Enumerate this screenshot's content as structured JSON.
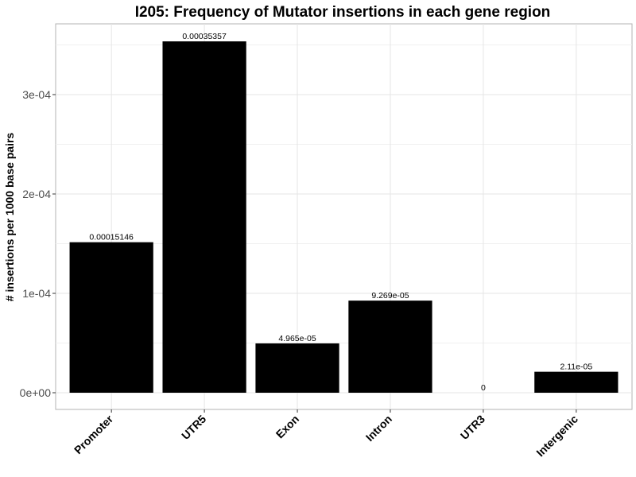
{
  "chart_data": {
    "type": "bar",
    "title": "I205: Frequency of Mutator insertions in each gene region",
    "xlabel": "",
    "ylabel": "# insertions per 1000 base pairs",
    "categories": [
      "Promoter",
      "UTR5",
      "Exon",
      "Intron",
      "UTR3",
      "Intergenic"
    ],
    "values": [
      0.00015146,
      0.00035357,
      4.965e-05,
      9.269e-05,
      0,
      2.11e-05
    ],
    "data_labels": [
      "0.00015146",
      "0.00035357",
      "4.965e-05",
      "9.269e-05",
      "0",
      "2.11e-05"
    ],
    "ylim": [
      0,
      0.0003713
    ],
    "yticks": [
      0,
      0.0001,
      0.0002,
      0.0003
    ],
    "ytick_labels": [
      "0e+00",
      "1e-04",
      "2e-04",
      "3e-04"
    ],
    "bar_color": "#000000",
    "grid": true,
    "legend": "none"
  }
}
